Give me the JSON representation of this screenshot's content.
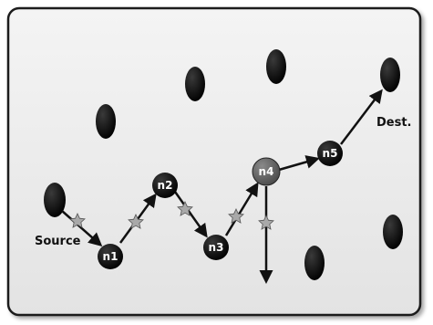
{
  "diagram": {
    "colors": {
      "panel_fill": "#e9e9e9",
      "panel_border": "#1a1a1a",
      "node_fill": "#0a0a0a",
      "active_node_fill": "#666666",
      "arrow": "#111111",
      "star": "#a9a9a9"
    },
    "labels": {
      "source": "Source",
      "destination": "Dest."
    },
    "path_nodes": [
      {
        "id": "n1",
        "label": "n1"
      },
      {
        "id": "n2",
        "label": "n2"
      },
      {
        "id": "n3",
        "label": "n3"
      },
      {
        "id": "n4",
        "label": "n4"
      },
      {
        "id": "n5",
        "label": "n5"
      }
    ],
    "icons": {
      "relay_marker": "star-icon",
      "node": "circle-node-icon"
    }
  }
}
